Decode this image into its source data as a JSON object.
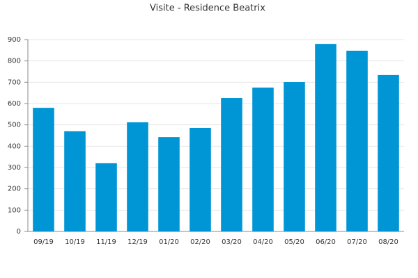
{
  "chart_data": {
    "type": "bar",
    "title": "Visite - Residence Beatrix",
    "categories": [
      "09/19",
      "10/19",
      "11/19",
      "12/19",
      "01/20",
      "02/20",
      "03/20",
      "04/20",
      "05/20",
      "06/20",
      "07/20",
      "08/20"
    ],
    "values": [
      580,
      470,
      320,
      512,
      443,
      486,
      626,
      675,
      701,
      880,
      848,
      734
    ],
    "color": "#0096d6",
    "ylim": [
      0,
      900
    ],
    "yticks": [
      0,
      100,
      200,
      300,
      400,
      500,
      600,
      700,
      800,
      900
    ],
    "grid": true
  }
}
